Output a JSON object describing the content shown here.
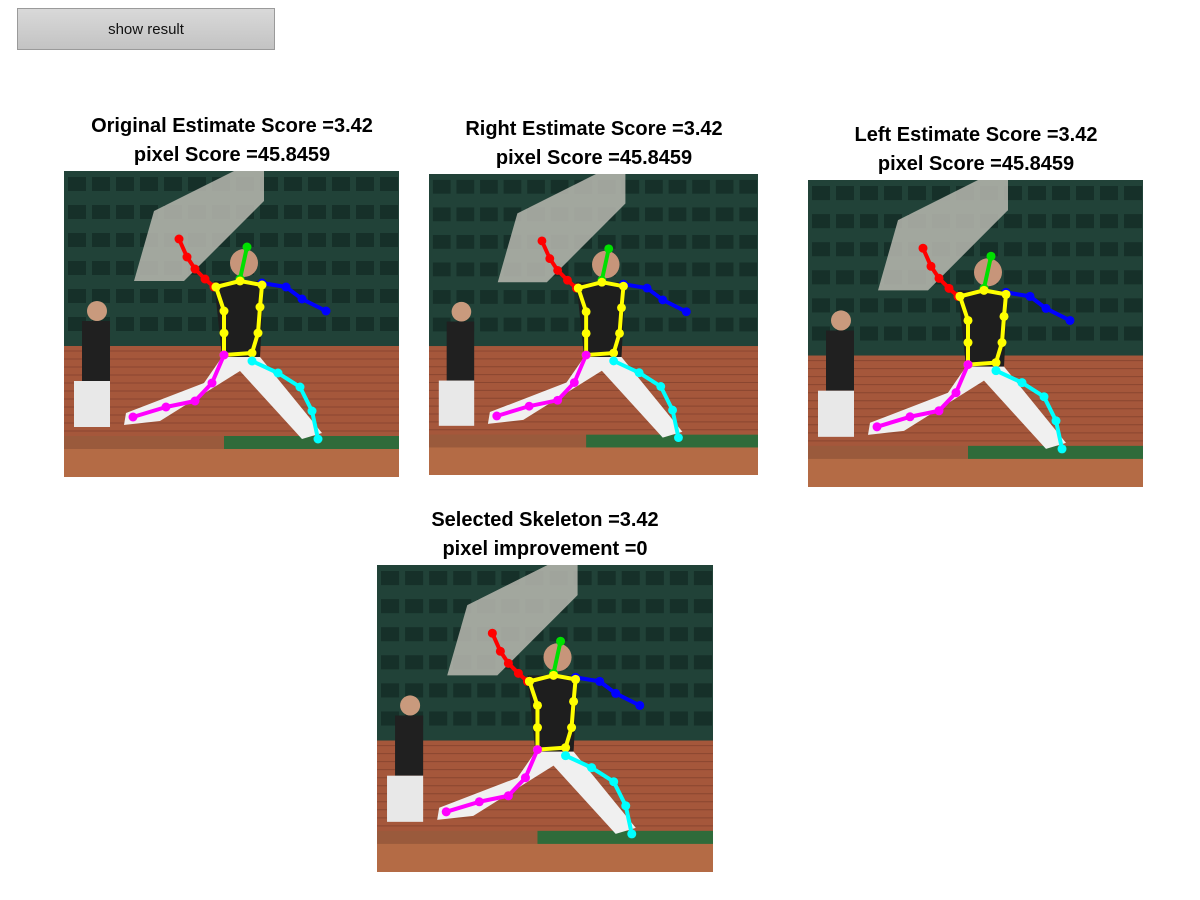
{
  "button": {
    "label": "show result"
  },
  "panels": [
    {
      "id": "original",
      "line1": "Original Estimate Score =3.42",
      "line2": "pixel Score =45.8459"
    },
    {
      "id": "right",
      "line1": "Right Estimate Score =3.42",
      "line2": "pixel Score =45.8459"
    },
    {
      "id": "left",
      "line1": "Left Estimate Score =3.42",
      "line2": "pixel Score =45.8459"
    },
    {
      "id": "selected",
      "line1": "Selected Skeleton =3.42",
      "line2": "pixel improvement =0"
    }
  ],
  "skeleton_colors": {
    "right_arm": "#ff0000",
    "head": "#00e000",
    "left_arm": "#0000ff",
    "torso": "#ffff00",
    "right_leg": "#ff00ff",
    "left_leg": "#00ffff"
  }
}
